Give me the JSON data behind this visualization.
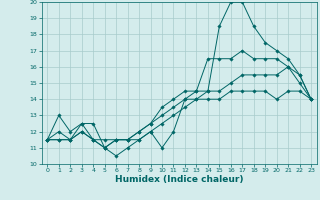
{
  "title": "",
  "xlabel": "Humidex (Indice chaleur)",
  "bg_color": "#d4ecec",
  "grid_color": "#a8cccc",
  "line_color": "#006666",
  "xlim": [
    -0.5,
    23.5
  ],
  "ylim": [
    10,
    20
  ],
  "yticks": [
    10,
    11,
    12,
    13,
    14,
    15,
    16,
    17,
    18,
    19,
    20
  ],
  "xticks": [
    0,
    1,
    2,
    3,
    4,
    5,
    6,
    7,
    8,
    9,
    10,
    11,
    12,
    13,
    14,
    15,
    16,
    17,
    18,
    19,
    20,
    21,
    22,
    23
  ],
  "series": [
    [
      11.5,
      13.0,
      12.0,
      12.5,
      12.5,
      11.0,
      10.5,
      11.0,
      11.5,
      12.0,
      11.0,
      12.0,
      14.0,
      14.5,
      14.5,
      18.5,
      20.0,
      20.0,
      18.5,
      17.5,
      17.0,
      16.5,
      15.5,
      14.0
    ],
    [
      11.5,
      12.0,
      11.5,
      12.5,
      11.5,
      11.0,
      11.5,
      11.5,
      12.0,
      12.5,
      13.5,
      14.0,
      14.5,
      14.5,
      16.5,
      16.5,
      16.5,
      17.0,
      16.5,
      16.5,
      16.5,
      16.0,
      15.0,
      14.0
    ],
    [
      11.5,
      11.5,
      11.5,
      12.0,
      11.5,
      11.0,
      11.5,
      11.5,
      12.0,
      12.5,
      13.0,
      13.5,
      14.0,
      14.0,
      14.5,
      14.5,
      15.0,
      15.5,
      15.5,
      15.5,
      15.5,
      16.0,
      15.5,
      14.0
    ],
    [
      11.5,
      11.5,
      11.5,
      12.0,
      11.5,
      11.5,
      11.5,
      11.5,
      11.5,
      12.0,
      12.5,
      13.0,
      13.5,
      14.0,
      14.0,
      14.0,
      14.5,
      14.5,
      14.5,
      14.5,
      14.0,
      14.5,
      14.5,
      14.0
    ]
  ],
  "xlabel_fontsize": 6.5,
  "tick_fontsize": 4.5
}
